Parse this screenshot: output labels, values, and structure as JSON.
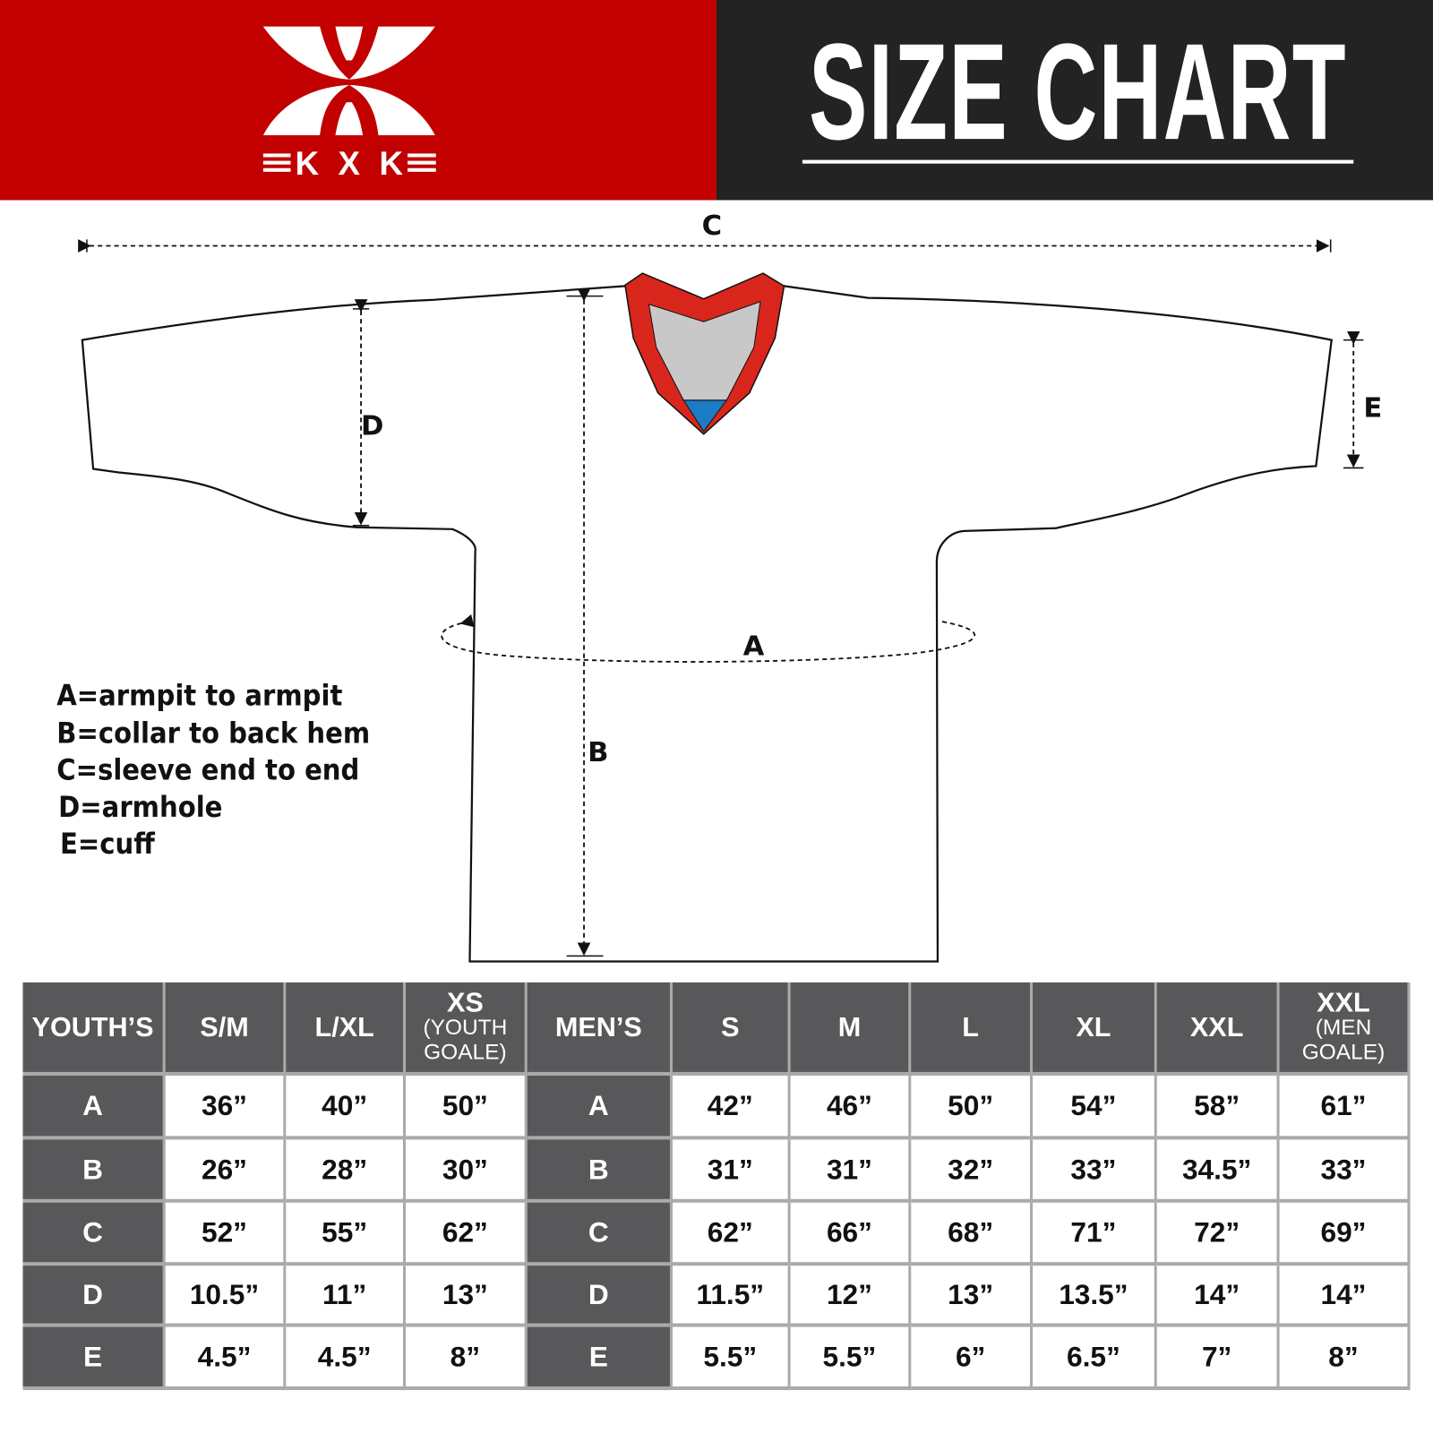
{
  "brand": {
    "logo_text": "KXK",
    "colors": {
      "red": "#c20000",
      "dark": "#232323",
      "table_header": "#58585a",
      "collar_red": "#d9261c",
      "collar_blue": "#1a7cc4"
    }
  },
  "header": {
    "title": "SIZE CHART"
  },
  "diagram": {
    "labels": {
      "a": "A",
      "b": "B",
      "c": "C",
      "d": "D",
      "e": "E"
    },
    "legend": [
      "A=armpit to armpit",
      "B=collar to back hem",
      "C=sleeve end to end",
      "D=armhole",
      "E=cuff"
    ]
  },
  "table": {
    "youth": {
      "title": "YOUTH’S",
      "sizes": [
        {
          "main": "S/M",
          "sub": ""
        },
        {
          "main": "L/XL",
          "sub": ""
        },
        {
          "main": "XS",
          "sub": "(YOUTH GOALE)"
        }
      ]
    },
    "men": {
      "title": "MEN’S",
      "sizes": [
        {
          "main": "S",
          "sub": ""
        },
        {
          "main": "M",
          "sub": ""
        },
        {
          "main": "L",
          "sub": ""
        },
        {
          "main": "XL",
          "sub": ""
        },
        {
          "main": "XXL",
          "sub": ""
        },
        {
          "main": "XXL",
          "sub": "(MEN GOALE)"
        }
      ]
    },
    "rows": [
      {
        "label": "A",
        "youth": [
          "36”",
          "40”",
          "50”"
        ],
        "men": [
          "42”",
          "46”",
          "50”",
          "54”",
          "58”",
          "61”"
        ]
      },
      {
        "label": "B",
        "youth": [
          "26”",
          "28”",
          "30”"
        ],
        "men": [
          "31”",
          "31”",
          "32”",
          "33”",
          "34.5”",
          "33”"
        ]
      },
      {
        "label": "C",
        "youth": [
          "52”",
          "55”",
          "62”"
        ],
        "men": [
          "62”",
          "66”",
          "68”",
          "71”",
          "72”",
          "69”"
        ]
      },
      {
        "label": "D",
        "youth": [
          "10.5”",
          "11”",
          "13”"
        ],
        "men": [
          "11.5”",
          "12”",
          "13”",
          "13.5”",
          "14”",
          "14”"
        ]
      },
      {
        "label": "E",
        "youth": [
          "4.5”",
          "4.5”",
          "8”"
        ],
        "men": [
          "5.5”",
          "5.5”",
          "6”",
          "6.5”",
          "7”",
          "8”"
        ]
      }
    ]
  }
}
